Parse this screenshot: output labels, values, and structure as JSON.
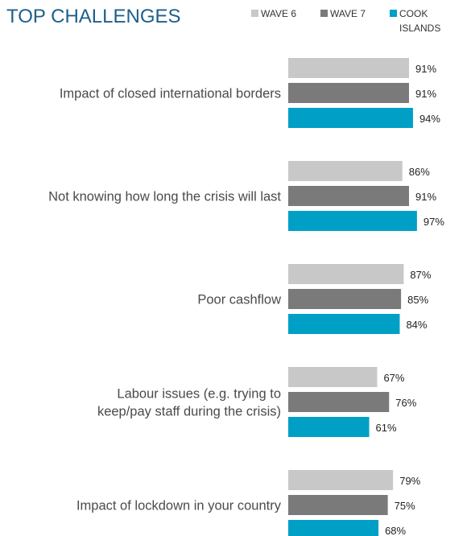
{
  "chart_data": {
    "type": "bar",
    "orientation": "horizontal",
    "title": "TOP CHALLENGES",
    "categories": [
      [
        "Impact of closed international borders"
      ],
      [
        "Not knowing how long the crisis will last"
      ],
      [
        "Poor cashflow"
      ],
      [
        "Labour issues  (e.g. trying to",
        "keep/pay staff during the crisis)"
      ],
      [
        "Impact of lockdown in your country"
      ]
    ],
    "series": [
      {
        "name": [
          "WAVE 6"
        ],
        "color": "#c8c8c8",
        "values": [
          91,
          86,
          87,
          67,
          79
        ]
      },
      {
        "name": [
          "WAVE 7"
        ],
        "color": "#7a7a7a",
        "values": [
          91,
          91,
          85,
          76,
          75
        ]
      },
      {
        "name": [
          "COOK",
          "ISLANDS"
        ],
        "color": "#009fc6",
        "values": [
          94,
          97,
          84,
          61,
          68
        ]
      }
    ],
    "value_suffix": "%",
    "xlim": [
      0,
      100
    ],
    "grid": false,
    "legend_position": "top-right"
  }
}
